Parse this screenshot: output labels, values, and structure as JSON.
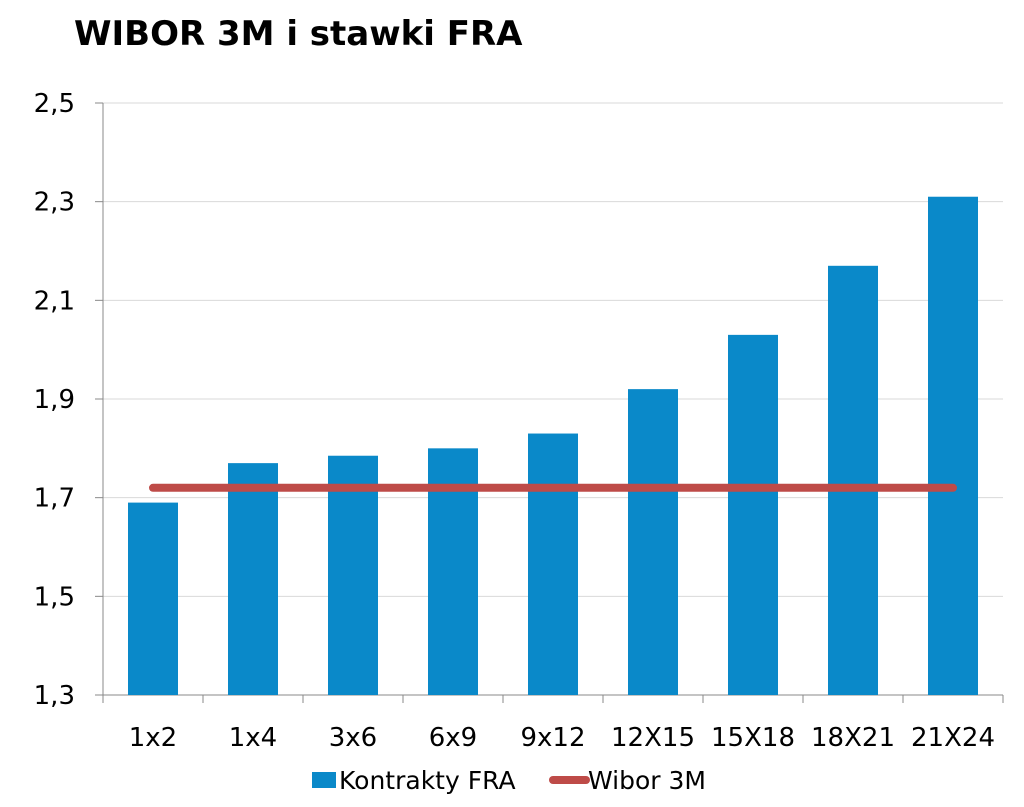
{
  "chart_data": {
    "type": "bar",
    "title": "WIBOR 3M i stawki FRA",
    "xlabel": "",
    "ylabel": "",
    "categories": [
      "1x2",
      "1x4",
      "3x6",
      "6x9",
      "9x12",
      "12X15",
      "15X18",
      "18X21",
      "21X24"
    ],
    "series": [
      {
        "name": "Kontrakty FRA",
        "kind": "bar",
        "color": "#0a89c9",
        "values": [
          1.69,
          1.77,
          1.785,
          1.8,
          1.83,
          1.92,
          2.03,
          2.17,
          2.31
        ]
      },
      {
        "name": "Wibor 3M",
        "kind": "line",
        "color": "#be4b48",
        "values": [
          1.72,
          1.72,
          1.72,
          1.72,
          1.72,
          1.72,
          1.72,
          1.72,
          1.72
        ]
      }
    ],
    "ylim": [
      1.3,
      2.5
    ],
    "yticks": [
      "1,3",
      "1,5",
      "1,7",
      "1,9",
      "2,1",
      "2,3",
      "2,5"
    ],
    "ytick_values": [
      1.3,
      1.5,
      1.7,
      1.9,
      2.1,
      2.3,
      2.5
    ],
    "grid": true,
    "legend_position": "bottom"
  }
}
